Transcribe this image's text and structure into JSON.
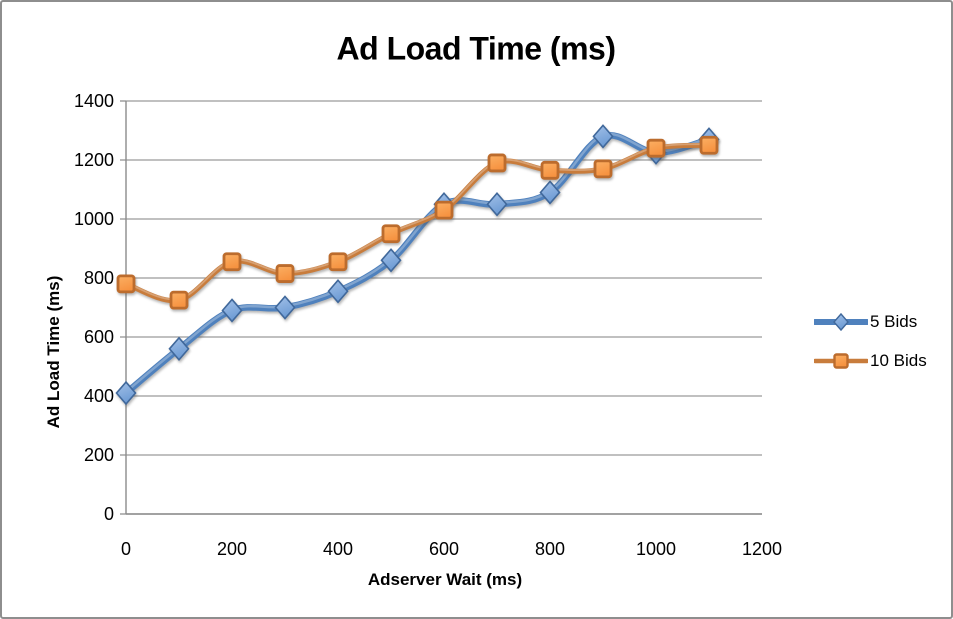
{
  "frame": {
    "background": "#ffffff",
    "border_color": "#8e8e8e"
  },
  "chart_data": {
    "type": "line",
    "title": "Ad Load Time (ms)",
    "xlabel": "Adserver Wait (ms)",
    "ylabel": "Ad Load Time (ms)",
    "x": [
      0,
      100,
      200,
      300,
      400,
      500,
      600,
      700,
      800,
      900,
      1000,
      1100
    ],
    "series": [
      {
        "name": "5 Bids",
        "marker": "diamond",
        "line_color": "#4f81bd",
        "marker_fill": "#6d9bd4",
        "marker_fill_light": "#a3c1e8",
        "marker_stroke": "#40689b",
        "line_width": 6.5,
        "values": [
          410,
          560,
          690,
          700,
          755,
          860,
          1050,
          1050,
          1090,
          1280,
          1225,
          1270
        ]
      },
      {
        "name": "10 Bids",
        "marker": "square",
        "line_color": "#c87c3c",
        "marker_fill": "#f69240",
        "marker_fill_light": "#fbb064",
        "marker_stroke": "#bc6c2d",
        "line_width": 5,
        "values": [
          780,
          725,
          855,
          815,
          855,
          950,
          1030,
          1190,
          1165,
          1170,
          1240,
          1250
        ]
      }
    ],
    "xlim": [
      0,
      1200
    ],
    "ylim": [
      0,
      1400
    ],
    "x_tick_step": 200,
    "y_tick_step": 200,
    "grid": "horizontal",
    "legend_position": "right",
    "gridline_color": "#9b9b9b",
    "axis_color": "#8c8c8c",
    "smooth_lines": true
  }
}
